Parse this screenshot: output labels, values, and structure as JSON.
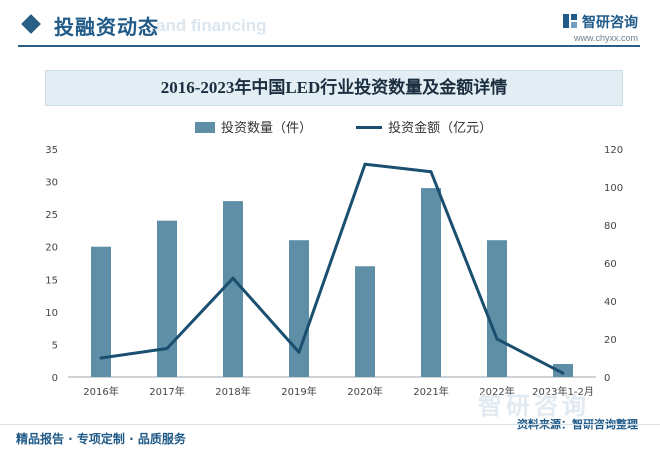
{
  "header": {
    "section_title": "投融资动态",
    "section_ghost": "and financing",
    "brand_name": "智研咨询",
    "brand_url": "www.chyxx.com"
  },
  "chart_data": {
    "type": "bar",
    "title": "2016-2023年中国LED行业投资数量及金额详情",
    "categories": [
      "2016年",
      "2017年",
      "2018年",
      "2019年",
      "2020年",
      "2021年",
      "2022年",
      "2023年1-2月"
    ],
    "series": [
      {
        "name": "投资数量（件）",
        "type": "bar",
        "axis": "left",
        "values": [
          20,
          24,
          27,
          21,
          17,
          29,
          21,
          2
        ]
      },
      {
        "name": "投资金额（亿元）",
        "type": "line",
        "axis": "right",
        "values": [
          10,
          15,
          52,
          13,
          112,
          108,
          20,
          2
        ]
      }
    ],
    "y_left": {
      "min": 0,
      "max": 35,
      "ticks": [
        "0",
        "5",
        "10",
        "15",
        "20",
        "25",
        "30",
        "35"
      ]
    },
    "y_right": {
      "min": 0,
      "max": 120,
      "ticks": [
        "0",
        "20",
        "40",
        "60",
        "80",
        "100",
        "120"
      ]
    },
    "colors": {
      "bar": "#5f8fa6",
      "line": "#1a4f70"
    },
    "grid": false,
    "legend": "top-center"
  },
  "footer": {
    "left_text": "精品报告 · 专项定制 · 品质服务",
    "source_text": "资料来源：智研咨询整理",
    "watermark": "智研咨询"
  }
}
